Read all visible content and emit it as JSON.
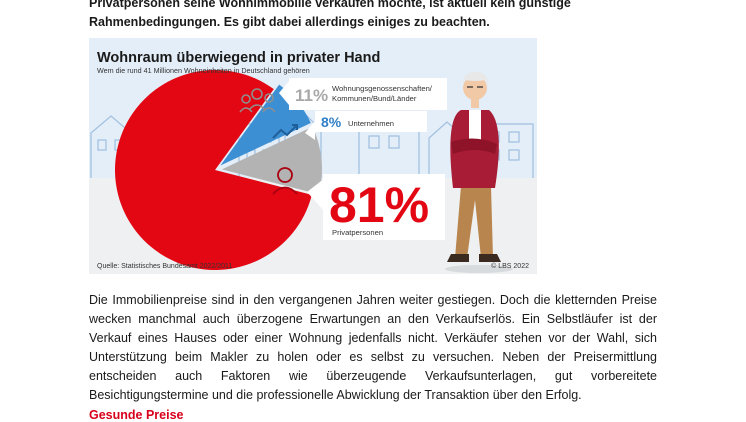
{
  "intro": {
    "line1": "Privatpersonen seine Wohnimmobilie verkaufen möchte, ist aktuell kein günstige",
    "line2": "Rahmenbedingungen. Es gibt dabei allerdings einiges zu beachten."
  },
  "infographic": {
    "title": "Wohnraum überwiegend in privater Hand",
    "subtitle": "Wem die rund 41 Millionen Wohneinheiten in Deutschland gehören",
    "source": "Quelle: Statistisches Bundesamt 2022/2011",
    "copyright": "© LBS 2022",
    "colors": {
      "private": "#e30613",
      "companies": "#3d8fd4",
      "cooperatives": "#b3b3b3",
      "sky": "#e3eef9"
    },
    "segments": [
      {
        "percent": "11%",
        "label_line1": "Wohnungsgenossenschaften/",
        "label_line2": "Kommunen/Bund/Länder",
        "icon": "people-group-icon"
      },
      {
        "percent": "8%",
        "label_line1": "Unternehmen",
        "icon": "trend-chart-icon"
      },
      {
        "percent": "81%",
        "label_line1": "Privatpersonen",
        "icon": "person-icon"
      }
    ]
  },
  "chart_data": {
    "type": "pie",
    "categories": [
      "Privatpersonen",
      "Unternehmen",
      "Wohnungsgenossenschaften/Kommunen/Bund/Länder"
    ],
    "values": [
      81,
      8,
      11
    ],
    "title": "Wohnraum überwiegend in privater Hand",
    "subtitle": "Wem die rund 41 Millionen Wohneinheiten in Deutschland gehören"
  },
  "body": {
    "paragraph": "Die Immobilienpreise sind in den vergangenen Jahren weiter gestiegen. Doch die kletternden Preise wecken manchmal auch überzogene Erwartungen an den Verkaufserlös. Ein Selbstläufer ist der Verkauf eines Hauses oder einer Wohnung jedenfalls nicht. Verkäufer stehen vor der Wahl, sich Unterstützung beim Makler zu holen oder es selbst zu versuchen. Neben der Preisermittlung entscheiden auch Faktoren wie überzeugende Verkaufsunterlagen, gut vorbereitete Besichtigungstermine und die professionelle Abwicklung der Transaktion über den Erfolg."
  },
  "subheading": "Gesunde Preise"
}
